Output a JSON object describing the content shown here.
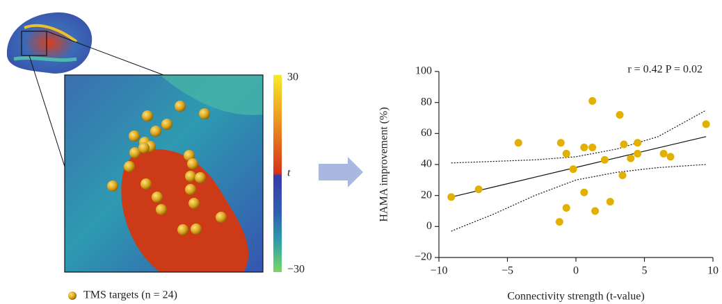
{
  "figure": {
    "colorbar_labels": [
      "30",
      "t",
      "−30"
    ],
    "legend_label": "TMS targets (n = 24)"
  },
  "chart_data": {
    "type": "scatter",
    "annotation": "r = 0.42 P = 0.02",
    "x_label": "Connectivity strength (t-value)",
    "y_label": "HAMA improvement (%)",
    "xlim": [
      -10,
      10
    ],
    "xticks": [
      {
        "value": -10,
        "label": "−10"
      },
      {
        "value": -5,
        "label": "−5"
      },
      0,
      5,
      10
    ],
    "ylim": [
      -20,
      100
    ],
    "yticks": [
      {
        "value": -20,
        "label": "−20"
      },
      0,
      20,
      40,
      60,
      80,
      100
    ],
    "series": [
      {
        "type": "scatter",
        "color": "#e2b000",
        "x": [
          -9.1,
          -7.1,
          -4.2,
          -1.1,
          -0.7,
          -0.2,
          -0.7,
          -1.2,
          0.6,
          1.2,
          1.2,
          0.6,
          1.4,
          2.1,
          2.5,
          3.2,
          3.5,
          3.4,
          4.0,
          4.5,
          4.5,
          6.4,
          6.9,
          9.5
        ],
        "values": [
          19,
          24,
          54,
          54,
          47,
          37,
          12,
          3,
          51,
          51,
          81,
          22,
          10,
          43,
          16,
          72,
          53,
          33,
          44,
          47,
          54,
          47,
          45,
          66
        ]
      },
      {
        "type": "line",
        "color": "#111111",
        "dash": "solid",
        "x": [
          -9.1,
          -6,
          -3,
          0,
          3,
          6,
          9.5
        ],
        "values": [
          19,
          25.5,
          31.8,
          38.1,
          44.4,
          50.7,
          58
        ]
      },
      {
        "type": "line",
        "color": "#111111",
        "dash": "dotted",
        "x": [
          -9.1,
          -6,
          -3,
          0,
          3,
          6,
          9.5
        ],
        "values": [
          41,
          42,
          43,
          45,
          50,
          58,
          75
        ]
      },
      {
        "type": "line",
        "color": "#111111",
        "dash": "dotted",
        "x": [
          -9.1,
          -6,
          -3,
          0,
          3,
          6,
          9.5
        ],
        "values": [
          -3,
          8,
          20,
          30,
          35,
          38,
          40
        ]
      }
    ]
  }
}
